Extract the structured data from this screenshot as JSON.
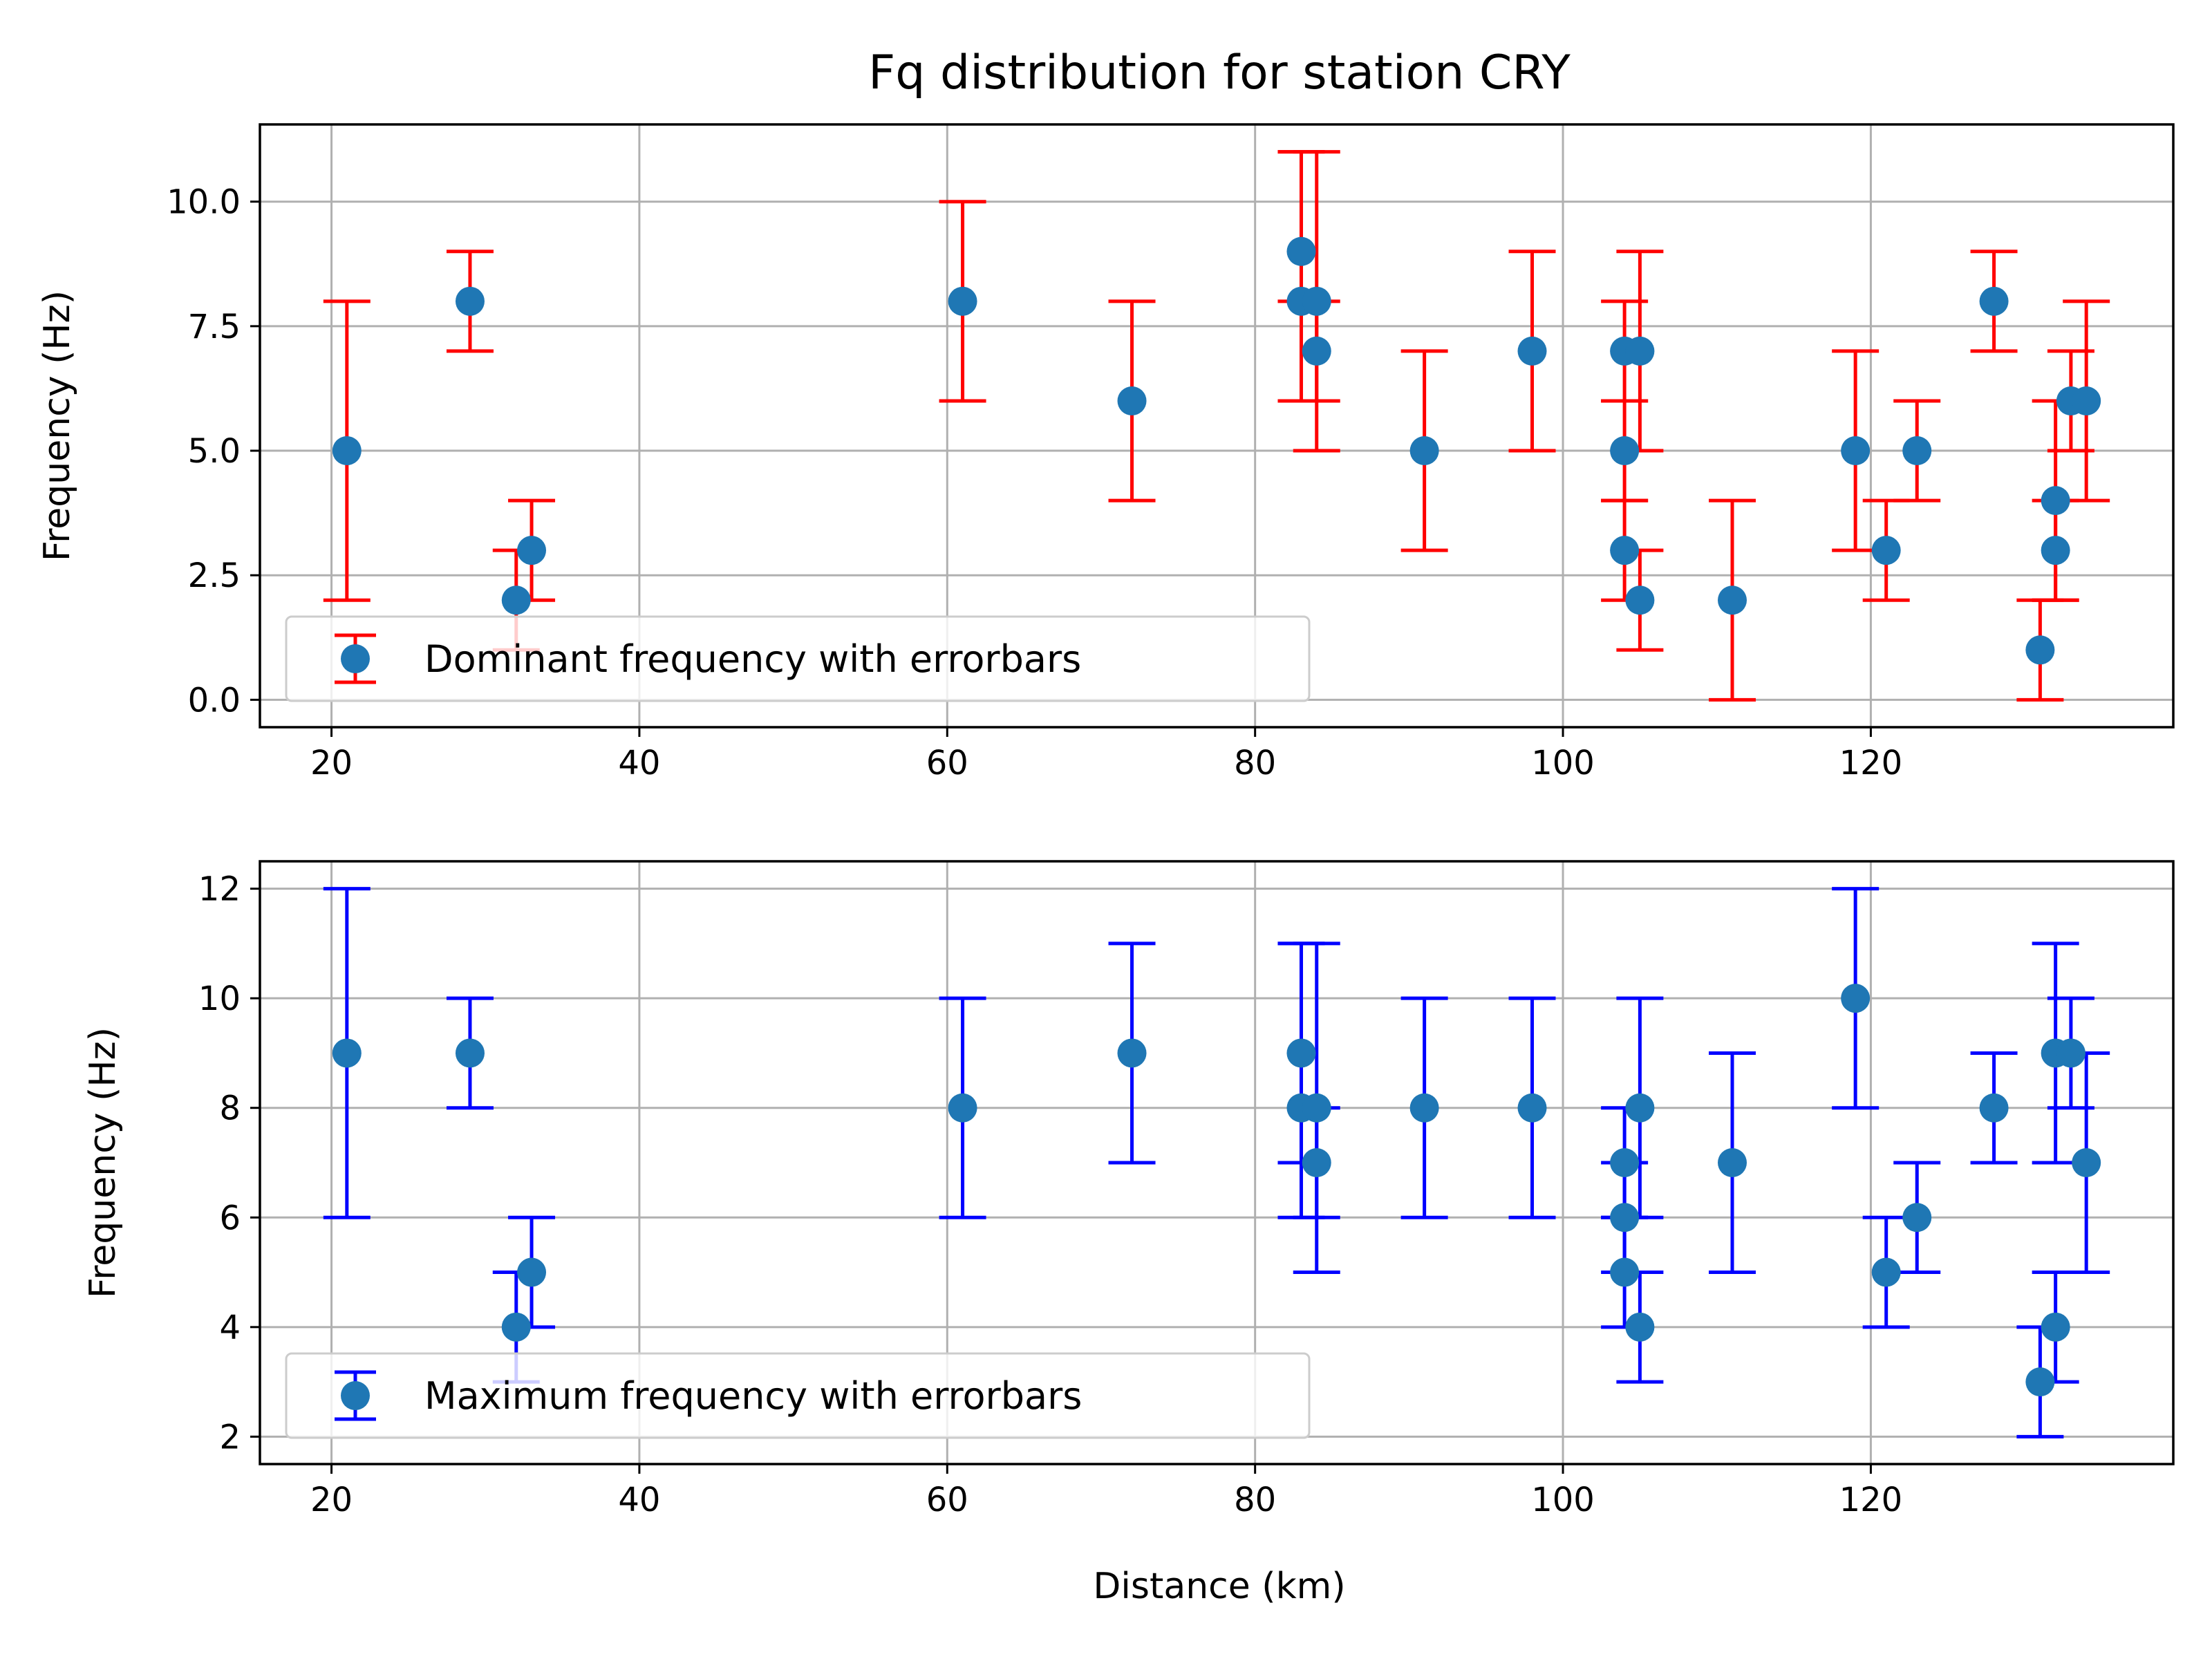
{
  "figure": {
    "title": "Fq distribution for station CRY"
  },
  "chart_data": [
    {
      "type": "scatter",
      "title": "Fq distribution for station CRY",
      "xlabel": "",
      "ylabel": "Frequency (Hz)",
      "xlim": [
        15.35,
        139.65
      ],
      "ylim": [
        -0.55,
        11.55
      ],
      "xticks": [
        20,
        40,
        60,
        80,
        100,
        120
      ],
      "yticks": [
        0.0,
        2.5,
        5.0,
        7.5,
        10.0
      ],
      "ytick_labels": [
        "0.0",
        "2.5",
        "5.0",
        "7.5",
        "10.0"
      ],
      "grid": true,
      "legend_position": "lower-left",
      "series": [
        {
          "name": "Dominant frequency with errorbars",
          "marker_color": "#1f77b4",
          "errorbar_color": "#ff0000",
          "x": [
            21,
            29,
            32,
            33,
            61,
            72,
            83,
            83,
            84,
            84,
            91,
            98,
            104,
            104,
            104,
            105,
            105,
            111,
            119,
            121,
            123,
            128,
            131,
            132,
            132,
            133,
            134
          ],
          "y": [
            5,
            8,
            2,
            3,
            8,
            6,
            9,
            8,
            8,
            7,
            5,
            7,
            7,
            5,
            3,
            7,
            2,
            2,
            5,
            3,
            5,
            8,
            1,
            4,
            3,
            6,
            6
          ],
          "y_low": [
            2,
            7,
            1,
            2,
            6,
            4,
            8,
            6,
            6,
            5,
            3,
            5,
            6,
            4,
            2,
            5,
            1,
            0,
            3,
            2,
            4,
            7,
            0,
            2,
            2,
            5,
            4
          ],
          "y_high": [
            8,
            9,
            3,
            4,
            10,
            8,
            11,
            11,
            11,
            8,
            7,
            9,
            8,
            6,
            4,
            9,
            3,
            4,
            7,
            4,
            6,
            9,
            2,
            6,
            4,
            7,
            8
          ]
        }
      ]
    },
    {
      "type": "scatter",
      "title": "",
      "xlabel": "Distance (km)",
      "ylabel": "Frequency (Hz)",
      "xlim": [
        15.35,
        139.65
      ],
      "ylim": [
        1.5,
        12.5
      ],
      "xticks": [
        20,
        40,
        60,
        80,
        100,
        120
      ],
      "yticks": [
        2,
        4,
        6,
        8,
        10,
        12
      ],
      "ytick_labels": [
        "2",
        "4",
        "6",
        "8",
        "10",
        "12"
      ],
      "grid": true,
      "legend_position": "lower-left",
      "series": [
        {
          "name": "Maximum frequency with errorbars",
          "marker_color": "#1f77b4",
          "errorbar_color": "#0000ff",
          "x": [
            21,
            29,
            32,
            33,
            61,
            72,
            83,
            83,
            84,
            84,
            91,
            98,
            104,
            104,
            104,
            105,
            105,
            111,
            119,
            121,
            123,
            128,
            131,
            132,
            132,
            133,
            134
          ],
          "y": [
            9,
            9,
            4,
            5,
            8,
            9,
            9,
            8,
            8,
            7,
            8,
            8,
            7,
            6,
            5,
            8,
            4,
            7,
            10,
            5,
            6,
            8,
            3,
            4,
            9,
            9,
            7
          ],
          "y_low": [
            6,
            8,
            3,
            4,
            6,
            7,
            7,
            6,
            6,
            5,
            6,
            6,
            6,
            5,
            4,
            6,
            3,
            5,
            8,
            4,
            5,
            7,
            2,
            3,
            7,
            8,
            5
          ],
          "y_high": [
            12,
            10,
            5,
            6,
            10,
            11,
            11,
            11,
            11,
            8,
            10,
            10,
            8,
            7,
            6,
            10,
            5,
            9,
            12,
            6,
            7,
            9,
            4,
            5,
            11,
            10,
            9
          ]
        }
      ]
    }
  ]
}
